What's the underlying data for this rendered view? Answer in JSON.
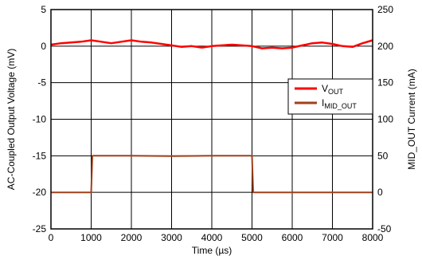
{
  "chart_data": {
    "type": "line",
    "xlabel": "Time (µs)",
    "ylabel_left": "AC-Coupled Output Voltage (mV)",
    "ylabel_right": "MID_OUT Current (mA)",
    "xlim": [
      0,
      8000
    ],
    "ylim_left": [
      -25,
      5
    ],
    "ylim_right": [
      -50,
      250
    ],
    "x_ticks": [
      0,
      1000,
      2000,
      3000,
      4000,
      5000,
      6000,
      7000,
      8000
    ],
    "y_left_ticks": [
      -25,
      -20,
      -15,
      -10,
      -5,
      0,
      5
    ],
    "y_right_ticks": [
      -50,
      0,
      50,
      100,
      150,
      200,
      250
    ],
    "grid": true,
    "legend_position": "right",
    "series": [
      {
        "name": "VOUT",
        "legend_main": "V",
        "legend_sub": "OUT",
        "axis": "left",
        "color": "#ff0000",
        "x": [
          0,
          250,
          500,
          750,
          1000,
          1250,
          1500,
          1750,
          2000,
          2250,
          2500,
          2750,
          3000,
          3250,
          3500,
          3750,
          4000,
          4250,
          4500,
          4750,
          5000,
          5250,
          5500,
          5750,
          6000,
          6250,
          6500,
          6750,
          7000,
          7250,
          7500,
          7750,
          8000
        ],
        "values": [
          0.2,
          0.4,
          0.5,
          0.6,
          0.8,
          0.6,
          0.4,
          0.6,
          0.8,
          0.6,
          0.5,
          0.3,
          0.1,
          -0.1,
          0.0,
          -0.2,
          0.0,
          0.1,
          0.2,
          0.1,
          0.0,
          -0.3,
          -0.2,
          -0.3,
          -0.2,
          0.1,
          0.4,
          0.5,
          0.3,
          0.0,
          -0.1,
          0.4,
          0.8
        ]
      },
      {
        "name": "IMID_OUT",
        "legend_main": "I",
        "legend_sub": "MID_OUT",
        "axis": "right",
        "color": "#a0401a",
        "x": [
          0,
          1000,
          1030,
          2000,
          3000,
          4000,
          5000,
          5030,
          6000,
          7000,
          8000
        ],
        "values": [
          0,
          0,
          50,
          50,
          49.5,
          50,
          50,
          0,
          0,
          0,
          0
        ]
      }
    ]
  }
}
